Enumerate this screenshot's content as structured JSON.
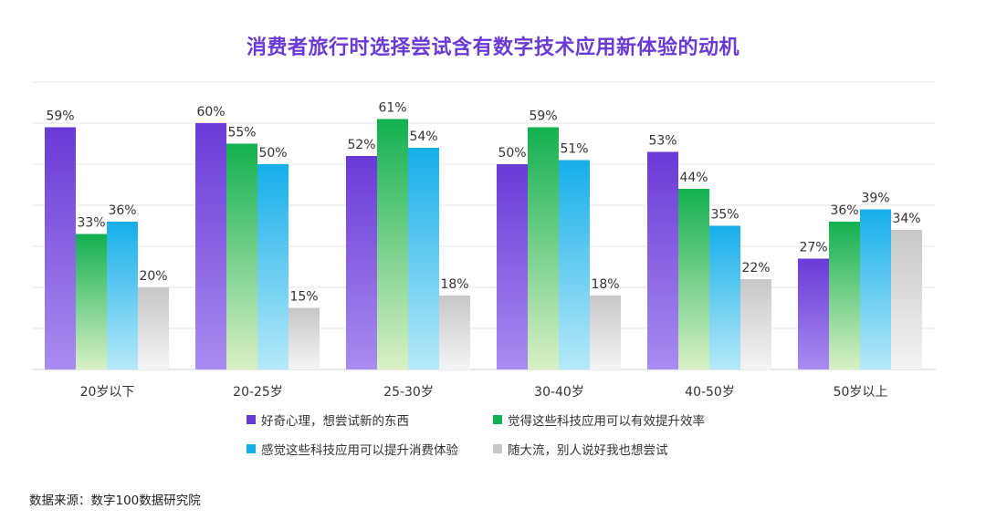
{
  "chart_data": {
    "type": "bar",
    "title": "消费者旅行时选择尝试含有数字技术应用新体验的动机",
    "categories": [
      "20岁以下",
      "20-25岁",
      "25-30岁",
      "30-40岁",
      "40-50岁",
      "50岁以上"
    ],
    "series": [
      {
        "name": "好奇心理，想尝试新的东西",
        "values": [
          59,
          60,
          52,
          50,
          53,
          27
        ],
        "labels": [
          "59%",
          "60%",
          "52%",
          "50%",
          "53%",
          "27%"
        ],
        "color": "#6a3ad6"
      },
      {
        "name": "觉得这些科技应用可以有效提升效率",
        "values": [
          33,
          55,
          61,
          59,
          44,
          36
        ],
        "labels": [
          "33%",
          "55%",
          "61%",
          "59%",
          "44%",
          "36%"
        ],
        "color": "#12b04f"
      },
      {
        "name": "感觉这些科技应用可以提升消费体验",
        "values": [
          36,
          50,
          54,
          51,
          35,
          39
        ],
        "labels": [
          "36%",
          "50%",
          "54%",
          "51%",
          "35%",
          "39%"
        ],
        "color": "#16aeea"
      },
      {
        "name": "随大流，别人说好我也想尝试",
        "values": [
          20,
          15,
          18,
          18,
          22,
          34
        ],
        "labels": [
          "20%",
          "15%",
          "18%",
          "18%",
          "22%",
          "34%"
        ],
        "color": "#c7c7c7"
      }
    ],
    "ylim": [
      0,
      70
    ],
    "grid": true,
    "legend_position": "bottom"
  },
  "source": "数据来源：数字100数据研究院"
}
